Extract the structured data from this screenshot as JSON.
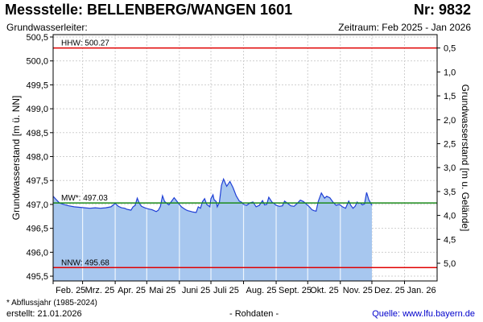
{
  "header": {
    "title": "Messstelle: BELLENBERG/WANGEN 1601",
    "number": "Nr: 9832",
    "aquifer": "Grundwasserleiter:",
    "period": "Zeitraum: Feb 2025 - Jan 2026"
  },
  "footer": {
    "footnote": "* Abflussjahr (1985-2024)",
    "created": "erstellt:  21.01.2026",
    "raw": "- Rohdaten -",
    "source": "Quelle: www.lfu.bayern.de"
  },
  "colors": {
    "fill": "#a7c7ef",
    "line": "#1f3fd6",
    "extreme": "#e00000",
    "mean": "#1a8a1a",
    "grid": "#cfcfcf"
  },
  "chart_data": {
    "type": "area",
    "ylabel": "Grundwasserstand [m ü. NN]",
    "y2label": "Grundwasserstand [m u. Gelände]",
    "ylim": [
      495.4,
      500.55
    ],
    "yticks": [
      495.5,
      496.0,
      496.5,
      497.0,
      497.5,
      498.0,
      498.5,
      499.0,
      499.5,
      500.0,
      500.5
    ],
    "ytick_labels": [
      "495,5",
      "496,0",
      "496,5",
      "497,0",
      "497,5",
      "498,0",
      "498,5",
      "499,0",
      "499,5",
      "500,0",
      "500,5"
    ],
    "y2_ground_level": 500.77,
    "y2ticks": [
      0.5,
      1.0,
      1.5,
      2.0,
      2.5,
      3.0,
      3.5,
      4.0,
      4.5,
      5.0
    ],
    "y2tick_labels": [
      "0,5",
      "1,0",
      "1,5",
      "2,0",
      "2,5",
      "3,0",
      "3,5",
      "4,0",
      "4,5",
      "5,0"
    ],
    "x_month_labels": [
      "Feb. 25",
      "Mrz. 25",
      "Apr. 25",
      "Mai 25",
      "Juni 25",
      "Juli 25",
      "Aug. 25",
      "Sept. 25",
      "Okt. 25",
      "Nov. 25",
      "Dez. 25",
      "Jan. 26"
    ],
    "x_month_start_days": [
      0,
      28,
      59,
      89,
      120,
      150,
      181,
      212,
      242,
      273,
      303,
      334
    ],
    "x_range_days": [
      0,
      365
    ],
    "grid": true,
    "reference_lines": [
      {
        "label": "HHW: 500.27",
        "value": 500.27,
        "kind": "extreme"
      },
      {
        "label": "MW*: 497.03",
        "value": 497.03,
        "kind": "mean"
      },
      {
        "label": "NNW: 495.68",
        "value": 495.68,
        "kind": "extreme"
      }
    ],
    "series": [
      {
        "x": [
          0,
          3,
          6,
          10,
          15,
          20,
          25,
          30,
          35,
          40,
          45,
          50,
          55,
          59,
          62,
          65,
          68,
          70,
          72,
          74,
          76,
          78,
          80,
          82,
          84,
          87,
          90,
          92,
          94,
          96,
          98,
          100,
          102,
          104,
          106,
          110,
          115,
          120,
          122,
          124,
          126,
          128,
          130,
          133,
          136,
          138,
          140,
          142,
          144,
          146,
          149,
          150,
          152,
          153,
          155,
          156,
          158,
          160,
          162,
          165,
          168,
          171,
          174,
          177,
          179,
          181,
          184,
          187,
          190,
          193,
          196,
          199,
          201,
          203,
          205,
          208,
          210,
          212,
          215,
          218,
          220,
          223,
          226,
          229,
          232,
          235,
          238,
          240,
          242,
          244,
          246,
          248,
          250,
          252,
          255,
          258,
          260,
          263,
          266,
          269,
          272,
          275,
          278,
          281,
          283,
          285,
          287,
          289,
          290,
          292,
          294,
          296,
          298,
          300,
          303
        ],
        "y": [
          497.17,
          497.1,
          497.03,
          497.0,
          496.97,
          496.95,
          496.94,
          496.93,
          496.92,
          496.93,
          496.92,
          496.93,
          496.95,
          497.02,
          496.96,
          496.93,
          496.92,
          496.9,
          496.89,
          496.88,
          496.95,
          496.98,
          497.13,
          497.02,
          496.96,
          496.93,
          496.91,
          496.9,
          496.89,
          496.87,
          496.85,
          496.88,
          496.96,
          497.18,
          497.06,
          496.99,
          497.14,
          497.0,
          496.95,
          496.92,
          496.89,
          496.87,
          496.86,
          496.84,
          496.83,
          496.95,
          496.92,
          497.06,
          497.12,
          497.0,
          496.95,
          497.12,
          497.2,
          497.1,
          497.06,
          496.95,
          497.04,
          497.4,
          497.53,
          497.38,
          497.48,
          497.35,
          497.18,
          497.07,
          497.05,
          497.0,
          496.98,
          497.03,
          497.05,
          496.95,
          496.98,
          497.08,
          496.99,
          497.0,
          497.15,
          497.05,
          497.02,
          496.98,
          496.96,
          496.97,
          497.07,
          497.02,
          496.97,
          496.96,
          497.02,
          497.09,
          497.06,
          497.02,
          496.98,
          496.94,
          496.89,
          496.87,
          496.86,
          497.06,
          497.24,
          497.13,
          497.17,
          497.14,
          497.05,
          496.98,
          497.0,
          496.95,
          496.92,
          497.07,
          496.98,
          496.92,
          496.96,
          497.05,
          497.02,
          497.03,
          496.99,
          497.01,
          497.25,
          497.1,
          496.98
        ]
      }
    ]
  }
}
